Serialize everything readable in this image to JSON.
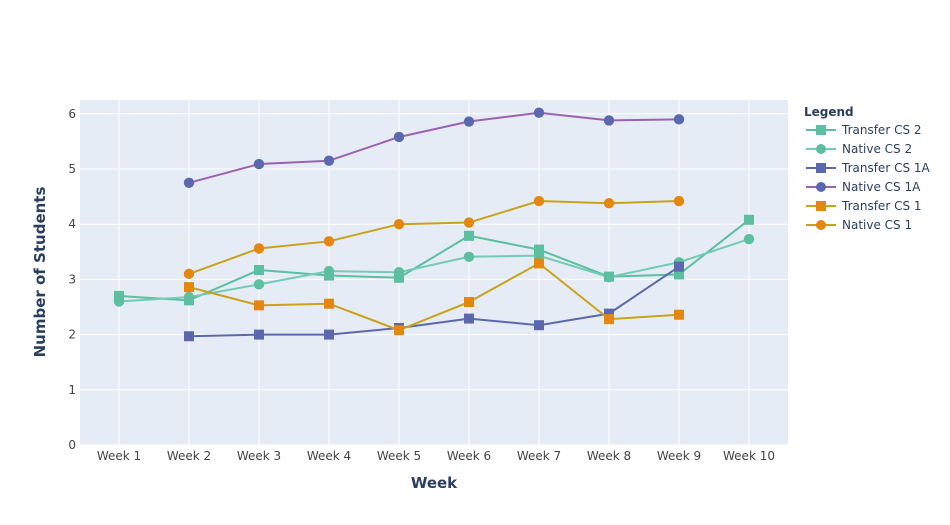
{
  "chart_data": {
    "type": "line",
    "categories": [
      "Week 1",
      "Week 2",
      "Week 3",
      "Week 4",
      "Week 5",
      "Week 6",
      "Week 7",
      "Week 8",
      "Week 9",
      "Week 10"
    ],
    "xlabel": "Week",
    "ylabel": "Number of Students",
    "ylim": [
      0,
      6.25
    ],
    "yticks": [
      0,
      1,
      2,
      3,
      4,
      5,
      6
    ],
    "grid": true,
    "legend": {
      "title": "Legend",
      "placement": "right"
    },
    "series": [
      {
        "name": "Transfer CS 2",
        "marker": "square",
        "color": "#5bbfa0",
        "values": [
          2.7,
          2.62,
          3.17,
          3.07,
          3.03,
          3.79,
          3.54,
          3.05,
          3.09,
          4.08
        ]
      },
      {
        "name": "Native CS 2",
        "marker": "circle",
        "color": "#5bbfa0",
        "values": [
          2.6,
          2.68,
          2.91,
          3.15,
          3.13,
          3.41,
          3.43,
          3.04,
          3.31,
          3.73
        ]
      },
      {
        "name": "Transfer CS 1A",
        "marker": "square",
        "color": "#5c68ad",
        "values": [
          null,
          1.97,
          2.0,
          2.0,
          2.12,
          2.29,
          2.17,
          2.38,
          3.23,
          null
        ]
      },
      {
        "name": "Native CS 1A",
        "marker": "circle",
        "color": "#5c68ad",
        "values": [
          null,
          4.75,
          5.09,
          5.15,
          5.58,
          5.86,
          6.02,
          5.88,
          5.9,
          null
        ]
      },
      {
        "name": "Transfer CS 1",
        "marker": "square",
        "color": "#e3870e",
        "values": [
          null,
          2.86,
          2.53,
          2.56,
          2.08,
          2.59,
          3.29,
          2.28,
          2.36,
          null
        ]
      },
      {
        "name": "Native CS 1",
        "marker": "circle",
        "color": "#e3870e",
        "values": [
          null,
          3.1,
          3.56,
          3.69,
          4.0,
          4.03,
          4.42,
          4.38,
          4.42,
          null
        ]
      }
    ],
    "line_colors": {
      "Transfer CS 2": "#5bbfa0",
      "Native CS 2": "#73cab5",
      "Transfer CS 1A": "#5c68ad",
      "Native CS 1A": "#9a62b1",
      "Transfer CS 1": "#c9a21c",
      "Native CS 1": "#c9a21c"
    }
  }
}
